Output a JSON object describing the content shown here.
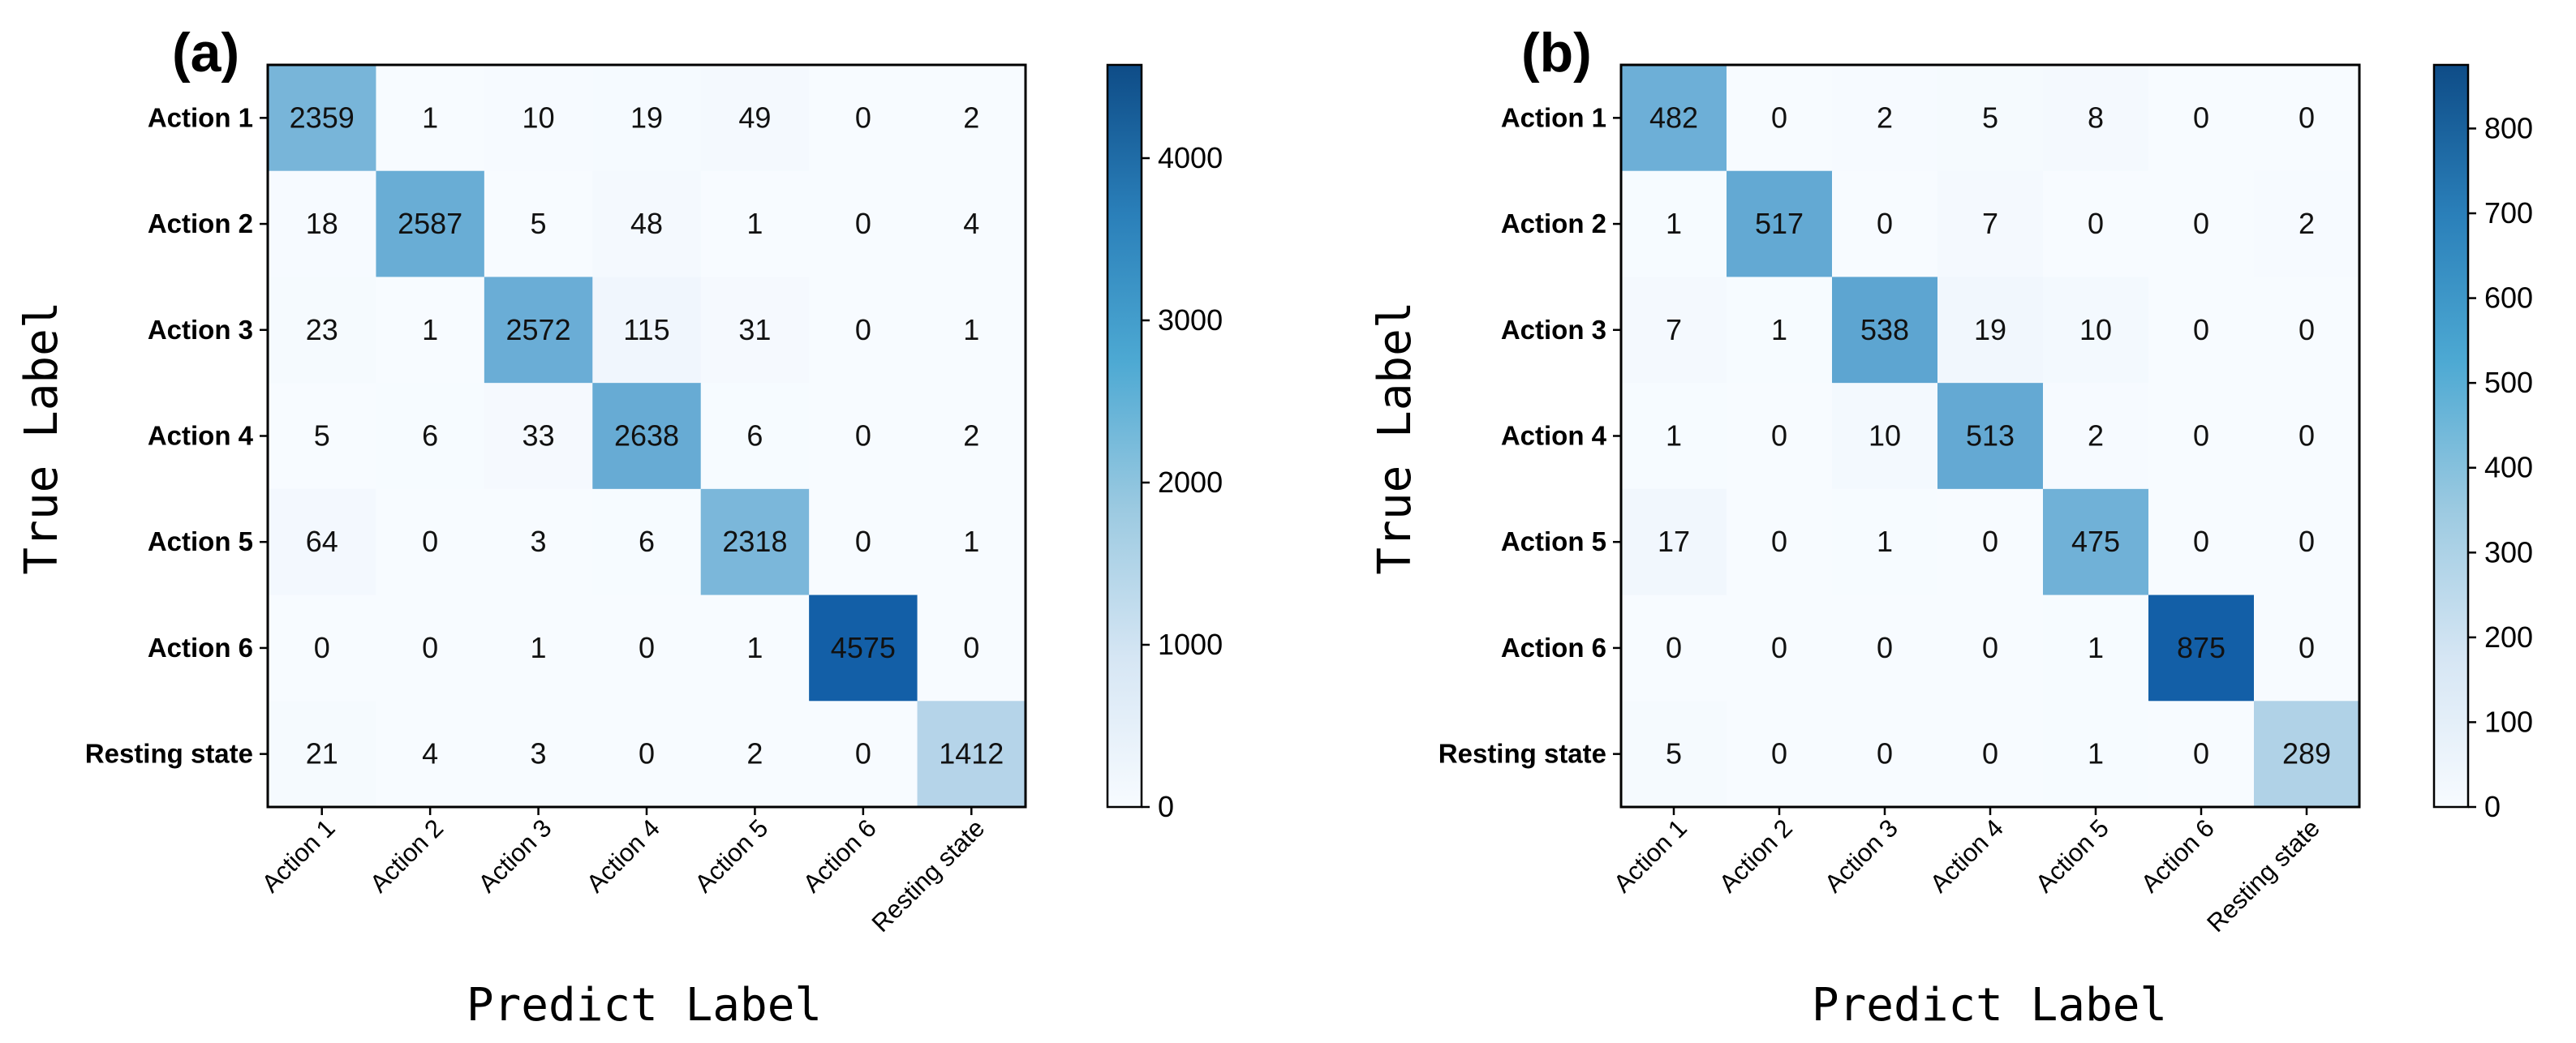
{
  "chart_data": [
    {
      "type": "heatmap",
      "panel_label": "(a)",
      "xlabel": "Predict Label",
      "ylabel": "True Label",
      "x_categories": [
        "Action 1",
        "Action 2",
        "Action 3",
        "Action 4",
        "Action 5",
        "Action 6",
        "Resting state"
      ],
      "y_categories": [
        "Action 1",
        "Action 2",
        "Action 3",
        "Action 4",
        "Action 5",
        "Action 6",
        "Resting state"
      ],
      "matrix": [
        [
          2359,
          1,
          10,
          19,
          49,
          0,
          2
        ],
        [
          18,
          2587,
          5,
          48,
          1,
          0,
          4
        ],
        [
          23,
          1,
          2572,
          115,
          31,
          0,
          1
        ],
        [
          5,
          6,
          33,
          2638,
          6,
          0,
          2
        ],
        [
          64,
          0,
          3,
          6,
          2318,
          0,
          1
        ],
        [
          0,
          0,
          1,
          0,
          1,
          4575,
          0
        ],
        [
          21,
          4,
          3,
          0,
          2,
          0,
          1412
        ]
      ],
      "colorbar": {
        "min": 0,
        "max": 4575,
        "ticks": [
          0,
          1000,
          2000,
          3000,
          4000
        ]
      }
    },
    {
      "type": "heatmap",
      "panel_label": "(b)",
      "xlabel": "Predict Label",
      "ylabel": "True Label",
      "x_categories": [
        "Action 1",
        "Action 2",
        "Action 3",
        "Action 4",
        "Action 5",
        "Action 6",
        "Resting state"
      ],
      "y_categories": [
        "Action 1",
        "Action 2",
        "Action 3",
        "Action 4",
        "Action 5",
        "Action 6",
        "Resting state"
      ],
      "matrix": [
        [
          482,
          0,
          2,
          5,
          8,
          0,
          0
        ],
        [
          1,
          517,
          0,
          7,
          0,
          0,
          2
        ],
        [
          7,
          1,
          538,
          19,
          10,
          0,
          0
        ],
        [
          1,
          0,
          10,
          513,
          2,
          0,
          0
        ],
        [
          17,
          0,
          1,
          0,
          475,
          0,
          0
        ],
        [
          0,
          0,
          0,
          0,
          1,
          875,
          0
        ],
        [
          5,
          0,
          0,
          0,
          1,
          0,
          289
        ]
      ],
      "colorbar": {
        "min": 0,
        "max": 875,
        "ticks": [
          0,
          100,
          200,
          300,
          400,
          500,
          600,
          700,
          800
        ]
      }
    }
  ],
  "colormap": [
    "#f7fbff",
    "#deebf7",
    "#c6dbef",
    "#9ecae1",
    "#6baed6",
    "#4292c6",
    "#2171b5",
    "#08519c",
    "#08306b"
  ]
}
